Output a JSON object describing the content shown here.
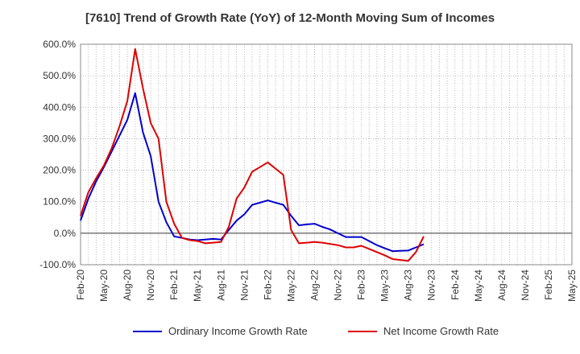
{
  "title": "[7610]  Trend of Growth Rate (YoY) of 12-Month Moving Sum of Incomes",
  "colors": {
    "ordinary": "#0000cc",
    "net": "#dd0000",
    "grid": "#aaaaaa",
    "zero": "#333333"
  },
  "chart_data": {
    "type": "line",
    "title": "[7610]  Trend of Growth Rate (YoY) of 12-Month Moving Sum of Incomes",
    "xlabel": "",
    "ylabel": "",
    "ylim": [
      -100,
      600
    ],
    "y_ticks": [
      "600.0%",
      "500.0%",
      "400.0%",
      "300.0%",
      "200.0%",
      "100.0%",
      "0.0%",
      "-100.0%"
    ],
    "x_ticks": [
      "Feb-20",
      "May-20",
      "Aug-20",
      "Nov-20",
      "Feb-21",
      "May-21",
      "Aug-21",
      "Nov-21",
      "Feb-22",
      "May-22",
      "Aug-22",
      "Nov-22",
      "Feb-23",
      "May-23",
      "Aug-23",
      "Nov-23",
      "Feb-24",
      "May-24",
      "Aug-24",
      "Nov-24",
      "Feb-25",
      "May-25"
    ],
    "grid": true,
    "legend_position": "bottom",
    "x_start": "Feb-20",
    "series": [
      {
        "name": "Ordinary Income Growth Rate",
        "color": "#0000cc",
        "values": [
          40,
          110,
          165,
          210,
          260,
          310,
          360,
          445,
          320,
          245,
          100,
          35,
          -10,
          -15,
          -20,
          -22,
          -20,
          -18,
          -20,
          10,
          40,
          60,
          90,
          97,
          104,
          97,
          90,
          55,
          25,
          28,
          30,
          20,
          12,
          0,
          -12,
          -12,
          -12,
          -25,
          -38,
          -48,
          -57,
          -56,
          -55,
          -45,
          -35
        ]
      },
      {
        "name": "Net Income Growth Rate",
        "color": "#dd0000",
        "values": [
          55,
          130,
          175,
          215,
          270,
          340,
          420,
          585,
          460,
          350,
          300,
          100,
          30,
          -15,
          -22,
          -25,
          -32,
          -30,
          -28,
          20,
          110,
          145,
          195,
          210,
          225,
          205,
          185,
          10,
          -32,
          -30,
          -28,
          -30,
          -34,
          -38,
          -45,
          -45,
          -40,
          -50,
          -60,
          -70,
          -82,
          -85,
          -88,
          -60,
          -10
        ]
      }
    ]
  }
}
